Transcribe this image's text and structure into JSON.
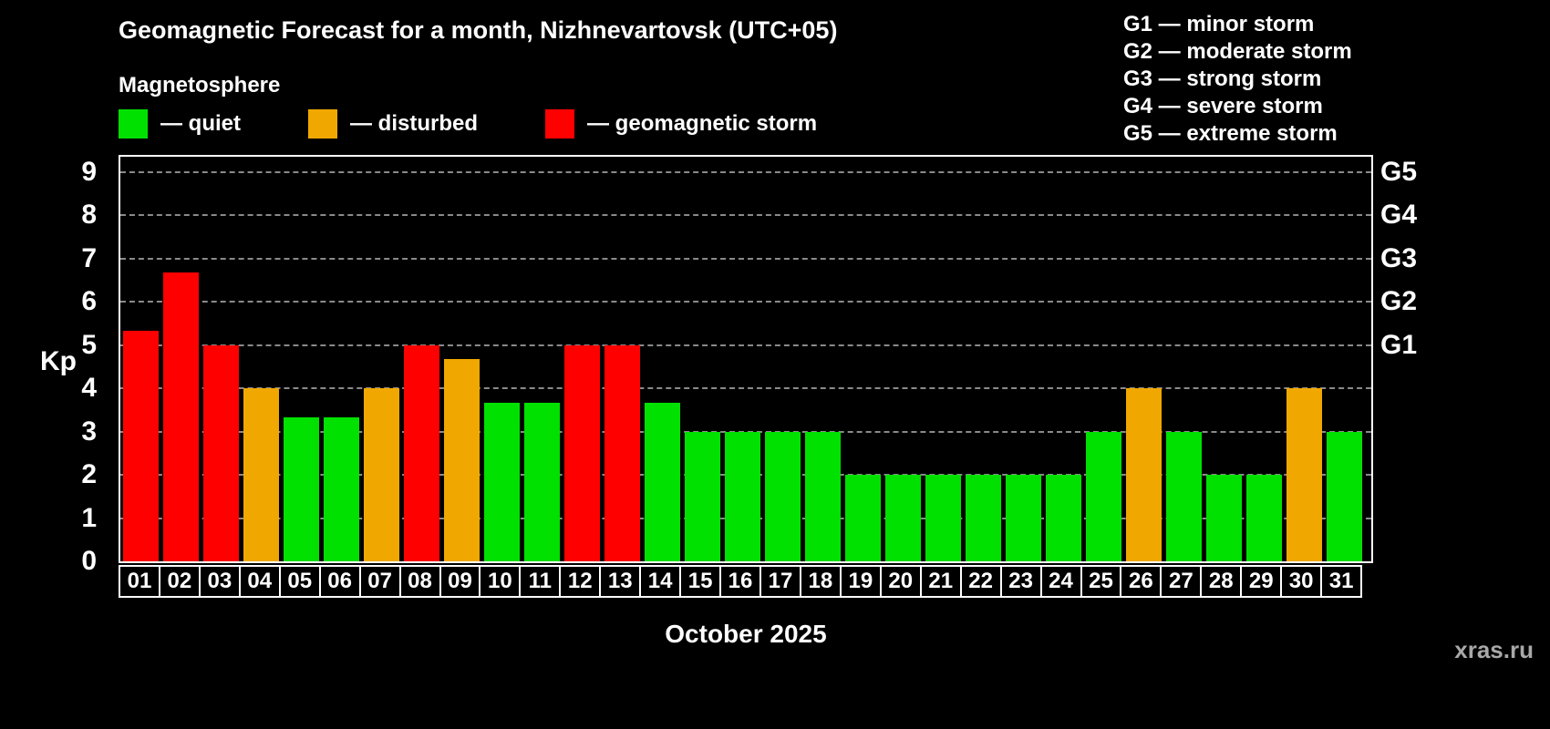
{
  "header": {
    "title": "Geomagnetic Forecast for a month, Nizhnevartovsk (UTC+05)",
    "subtitle": "Magnetosphere"
  },
  "legend": {
    "items": [
      {
        "key": "quiet",
        "label": "— quiet",
        "color": "#00e100"
      },
      {
        "key": "disturbed",
        "label": "— disturbed",
        "color": "#f0a800"
      },
      {
        "key": "storm",
        "label": "— geomagnetic storm",
        "color": "#ff0000"
      }
    ]
  },
  "storm_scale": {
    "items": [
      {
        "label": "G1 — minor storm"
      },
      {
        "label": "G2 — moderate storm"
      },
      {
        "label": "G3 — strong storm"
      },
      {
        "label": "G4 — severe storm"
      },
      {
        "label": "G5 — extreme storm"
      }
    ]
  },
  "chart_data": {
    "type": "bar",
    "title": "Geomagnetic Forecast for a month, Nizhnevartovsk (UTC+05)",
    "xlabel": "October 2025",
    "ylabel": "Kp",
    "ylim": [
      0,
      9
    ],
    "grid": true,
    "legend_position": "top",
    "yticks": [
      0,
      1,
      2,
      3,
      4,
      5,
      6,
      7,
      8,
      9
    ],
    "g_ticks": [
      {
        "label": "G1",
        "kp": 5
      },
      {
        "label": "G2",
        "kp": 6
      },
      {
        "label": "G3",
        "kp": 7
      },
      {
        "label": "G4",
        "kp": 8
      },
      {
        "label": "G5",
        "kp": 9
      }
    ],
    "categories": [
      "01",
      "02",
      "03",
      "04",
      "05",
      "06",
      "07",
      "08",
      "09",
      "10",
      "11",
      "12",
      "13",
      "14",
      "15",
      "16",
      "17",
      "18",
      "19",
      "20",
      "21",
      "22",
      "23",
      "24",
      "25",
      "26",
      "27",
      "28",
      "29",
      "30",
      "31"
    ],
    "values": [
      5.33,
      6.67,
      5,
      4,
      3.33,
      3.33,
      4,
      5,
      4.67,
      3.67,
      3.67,
      5,
      5,
      3.67,
      3,
      3,
      3,
      3,
      2,
      2,
      2,
      2,
      2,
      2,
      3,
      4,
      3,
      2,
      2,
      4,
      3
    ],
    "statuses": [
      "storm",
      "storm",
      "storm",
      "disturbed",
      "quiet",
      "quiet",
      "disturbed",
      "storm",
      "disturbed",
      "quiet",
      "quiet",
      "storm",
      "storm",
      "quiet",
      "quiet",
      "quiet",
      "quiet",
      "quiet",
      "quiet",
      "quiet",
      "quiet",
      "quiet",
      "quiet",
      "quiet",
      "quiet",
      "disturbed",
      "quiet",
      "quiet",
      "quiet",
      "disturbed",
      "quiet"
    ],
    "color_map": {
      "quiet": "#00e100",
      "disturbed": "#f0a800",
      "storm": "#ff0000"
    }
  },
  "footer": {
    "watermark": "xras.ru"
  }
}
